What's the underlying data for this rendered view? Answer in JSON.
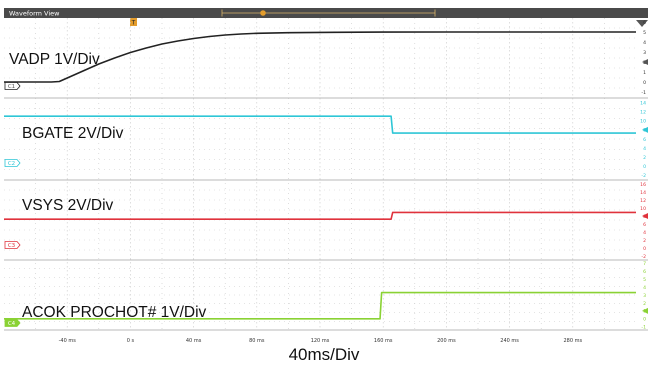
{
  "window": {
    "title": "Waveform View"
  },
  "timebase_label": "40ms/Div",
  "colors": {
    "titlebar": "#4a4a4a",
    "grid": "#c9c9c9",
    "divider": "#b8b8b8",
    "ch1": "#222222",
    "ch2": "#2ec6d6",
    "ch3": "#e0323c",
    "ch4": "#8ad234"
  },
  "chart_data": {
    "type": "line",
    "x_unit": "ms",
    "xlim": [
      -80,
      320
    ],
    "x_ticks": [
      "-40 ms",
      "0 s",
      "40 ms",
      "80 ms",
      "120 ms",
      "160 ms",
      "200 ms",
      "240 ms",
      "280 ms"
    ],
    "x_tick_values": [
      -40,
      0,
      40,
      80,
      120,
      160,
      200,
      240,
      280
    ],
    "series": [
      {
        "name": "VADP 1V/Div",
        "badge": "C1",
        "lane": 0,
        "y_ticks": [
          "6",
          "5",
          "4",
          "3",
          "2",
          "1",
          "0",
          "-1"
        ],
        "ylim": [
          -1.6,
          6.4
        ],
        "x": [
          -80,
          -50,
          -45,
          -40,
          -30,
          -20,
          -10,
          0,
          10,
          20,
          30,
          40,
          50,
          60,
          70,
          80,
          100,
          130,
          160,
          200,
          240,
          280,
          320
        ],
        "values": [
          0,
          0,
          0.05,
          0.4,
          1.1,
          1.8,
          2.4,
          2.95,
          3.4,
          3.8,
          4.1,
          4.35,
          4.55,
          4.7,
          4.8,
          4.87,
          4.93,
          4.97,
          4.99,
          5.0,
          5.0,
          5.0,
          5.0
        ]
      },
      {
        "name": "BGATE 2V/Div",
        "badge": "C2",
        "lane": 1,
        "y_ticks": [
          "14",
          "12",
          "10",
          "8",
          "6",
          "4",
          "2",
          "0",
          "-2"
        ],
        "ylim": [
          -3,
          15
        ],
        "x": [
          -80,
          165,
          166,
          320
        ],
        "values": [
          11,
          11,
          7.3,
          7.3
        ]
      },
      {
        "name": "VSYS 2V/Div",
        "badge": "C3",
        "lane": 2,
        "y_ticks": [
          "16",
          "14",
          "12",
          "10",
          "8",
          "6",
          "4",
          "2",
          "0",
          "-2"
        ],
        "ylim": [
          -3,
          17
        ],
        "x": [
          -80,
          165,
          166,
          320
        ],
        "values": [
          7.2,
          7.2,
          8.9,
          8.9
        ]
      },
      {
        "name": "ACOK PROCHOT# 1V/Div",
        "badge": "C4",
        "lane": 3,
        "y_ticks": [
          "7",
          "6",
          "5",
          "4",
          "3",
          "2",
          "1",
          "0",
          "-1"
        ],
        "ylim": [
          -1.4,
          7.4
        ],
        "x": [
          -80,
          158,
          159,
          320
        ],
        "values": [
          0,
          0,
          3.3,
          3.3
        ]
      }
    ]
  }
}
